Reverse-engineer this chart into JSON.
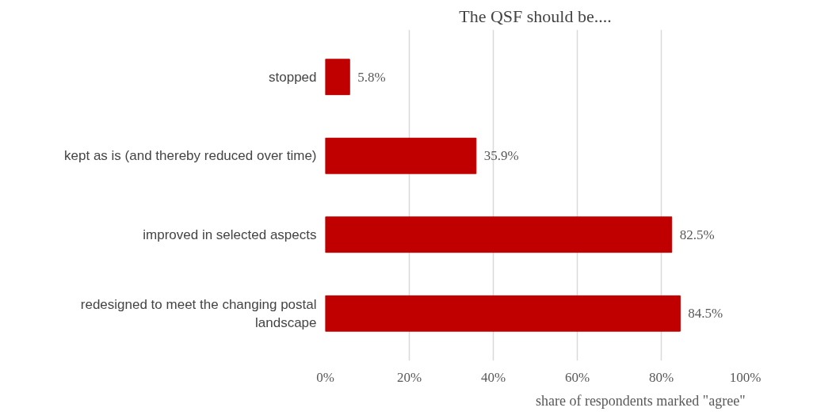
{
  "chart_data": {
    "type": "bar",
    "orientation": "horizontal",
    "title": "The QSF should be....",
    "xlabel": "share of respondents marked \"agree\"",
    "categories": [
      "stopped",
      "kept as is (and thereby reduced over time)",
      "improved in selected aspects",
      "redesigned to meet the changing postal landscape"
    ],
    "values": [
      5.8,
      35.9,
      82.5,
      84.5
    ],
    "color": "#c00000",
    "value_labels": [
      "5.8%",
      "35.9%",
      "82.5%",
      "84.5%"
    ],
    "xlim": [
      0,
      100
    ],
    "xticks": [
      {
        "value": 0,
        "label": "0%"
      },
      {
        "value": 20,
        "label": "20%"
      },
      {
        "value": 40,
        "label": "40%"
      },
      {
        "value": 60,
        "label": "60%"
      },
      {
        "value": 80,
        "label": "80%"
      },
      {
        "value": 100,
        "label": "100%"
      }
    ],
    "grid": "x"
  }
}
